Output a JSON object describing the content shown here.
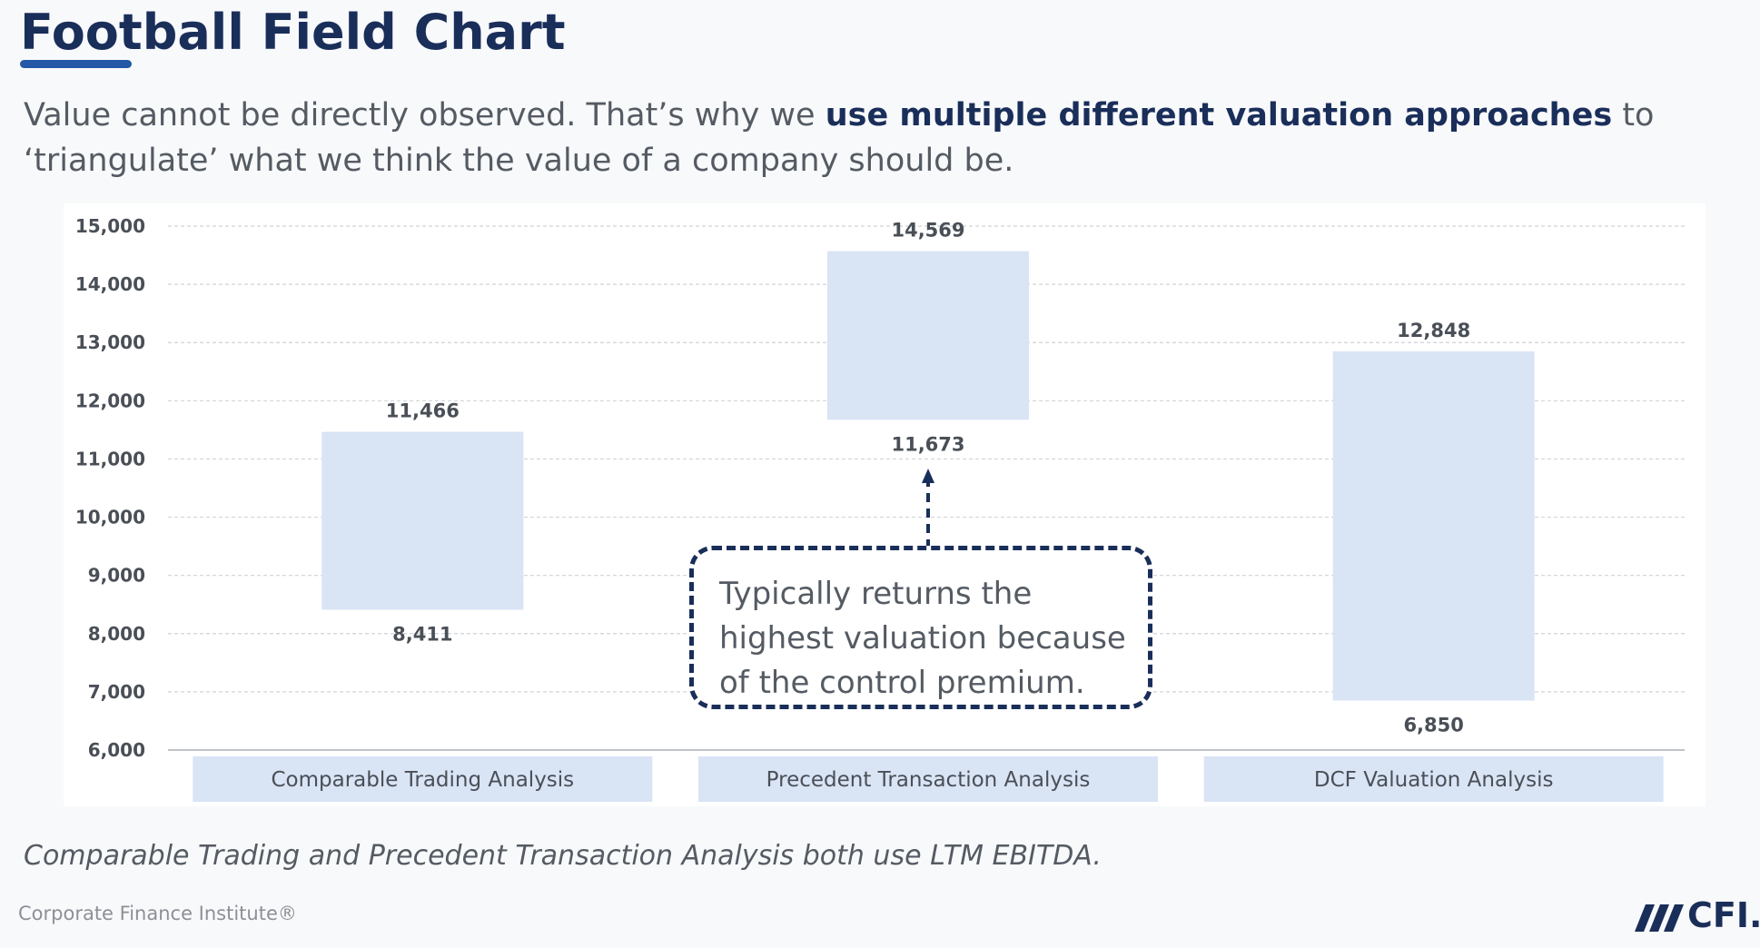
{
  "header": {
    "title": "Football Field Chart",
    "subtitle_before": "Value cannot be directly observed. That’s why we ",
    "subtitle_bold": "use multiple different valuation approaches",
    "subtitle_after": " to ‘triangulate’ what we think the value of a company should be."
  },
  "callout": {
    "text": "Typically returns the highest valuation because of the control premium."
  },
  "footnote": "Comparable Trading and Precedent Transaction Analysis both use LTM EBITDA.",
  "footer": {
    "brand": "Corporate Finance Institute®",
    "logo_text": "CFI."
  },
  "colors": {
    "bar_fill": "#d9e4f5",
    "grid": "#cfd3d8",
    "axis_text": "#4a4f57",
    "title": "#1a2e5a",
    "accent": "#2457a6"
  },
  "chart_data": {
    "type": "bar",
    "subtype": "floating-range",
    "categories": [
      "Comparable Trading Analysis",
      "Precedent Transaction Analysis",
      "DCF Valuation Analysis"
    ],
    "low": [
      8411,
      11673,
      6850
    ],
    "high": [
      11466,
      14569,
      12848
    ],
    "low_labels": [
      "8,411",
      "11,673",
      "6,850"
    ],
    "high_labels": [
      "11,466",
      "14,569",
      "12,848"
    ],
    "ylim": [
      6000,
      15000
    ],
    "ytick_step": 1000,
    "yticks": [
      "6,000",
      "7,000",
      "8,000",
      "9,000",
      "10,000",
      "11,000",
      "12,000",
      "13,000",
      "14,000",
      "15,000"
    ],
    "grid": true,
    "title": "",
    "xlabel": "",
    "ylabel": ""
  }
}
